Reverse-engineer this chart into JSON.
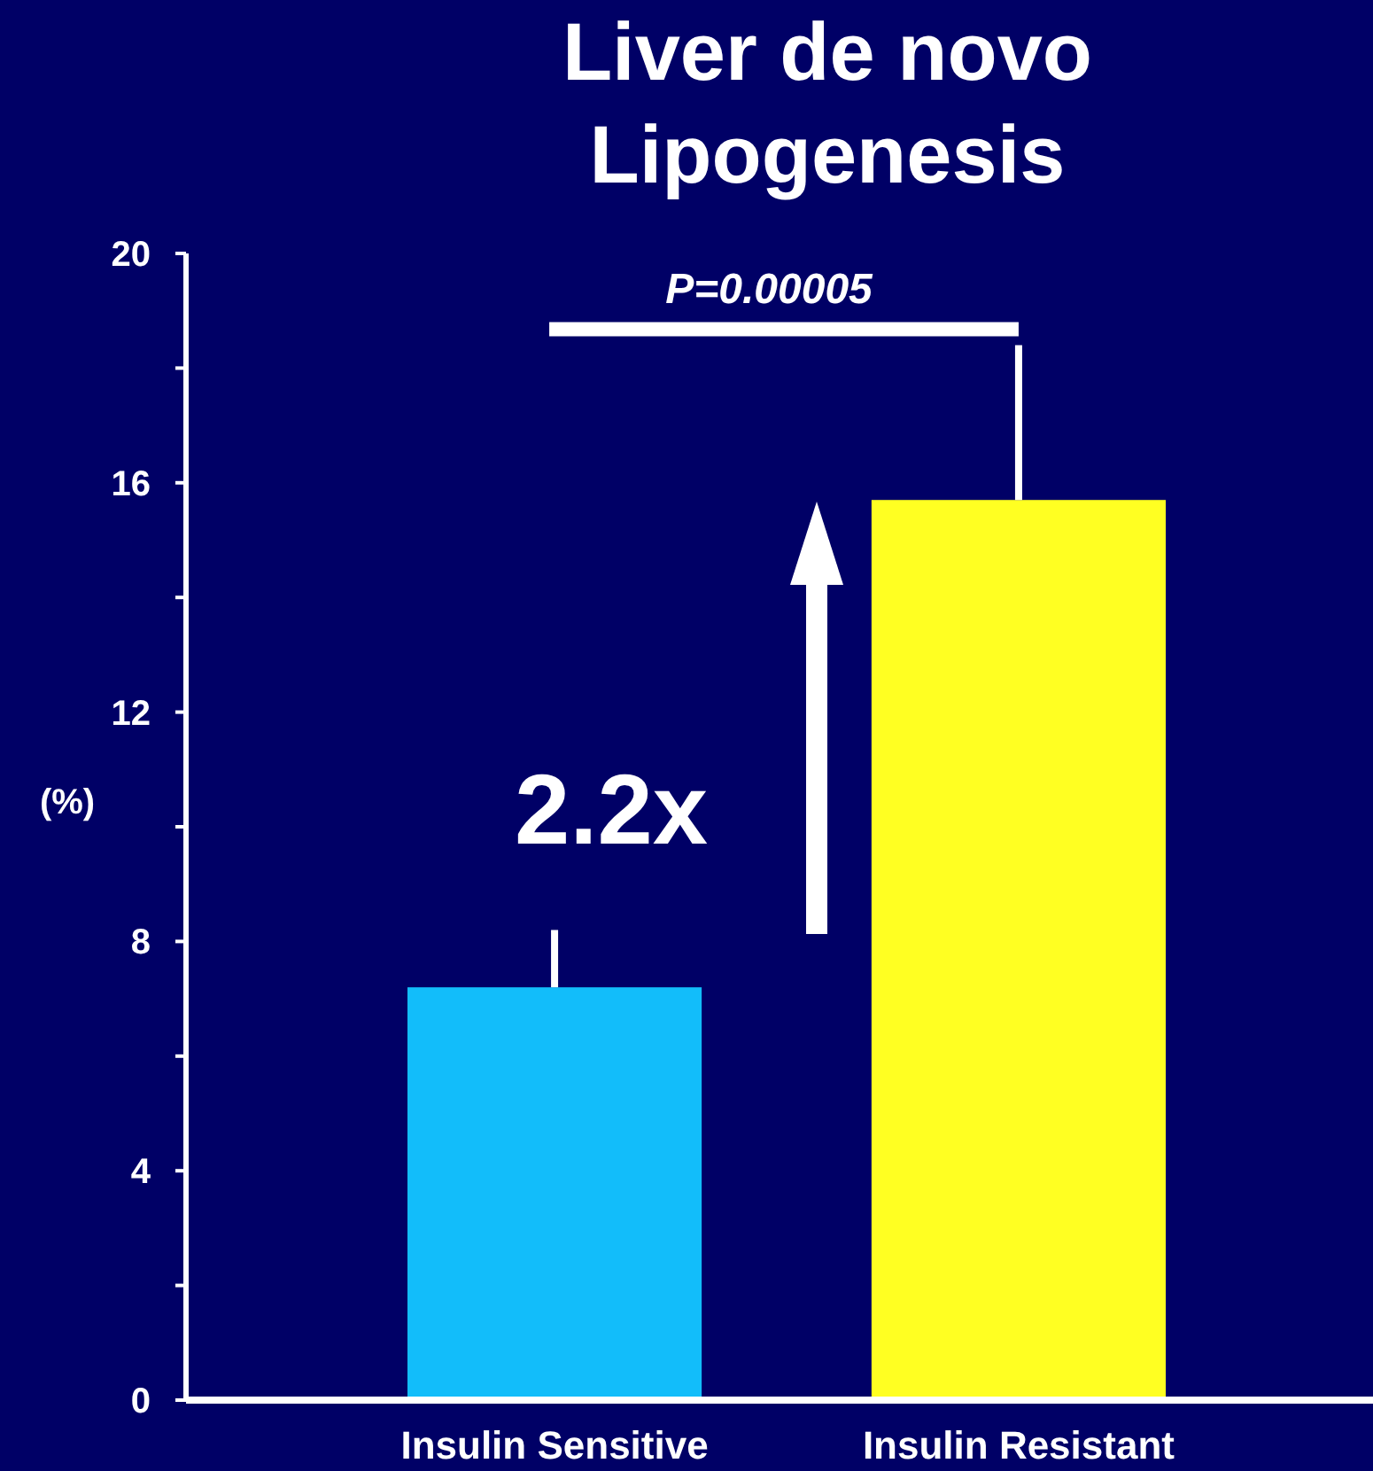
{
  "chart_data": {
    "type": "bar",
    "title": "Liver de novo Lipogenesis",
    "ylabel": "(%)",
    "categories": [
      "Insulin Sensitive",
      "Insulin Resistant"
    ],
    "values": [
      7.2,
      15.7
    ],
    "colors": [
      "#12bdfa",
      "#ffff22"
    ],
    "errors": [
      [
        7.2,
        8.2
      ],
      [
        15.7,
        18.4
      ]
    ],
    "ylim": [
      0,
      20
    ],
    "yticks": [
      0,
      {
        "value": 2,
        "label": null
      },
      4,
      {
        "value": 6,
        "label": null
      },
      8,
      {
        "value": 10,
        "label": null
      },
      12,
      {
        "value": 14,
        "label": null
      },
      16,
      {
        "value": 18,
        "label": null
      },
      20
    ],
    "annotations": [
      "P=0.00005",
      "2.2x"
    ]
  }
}
